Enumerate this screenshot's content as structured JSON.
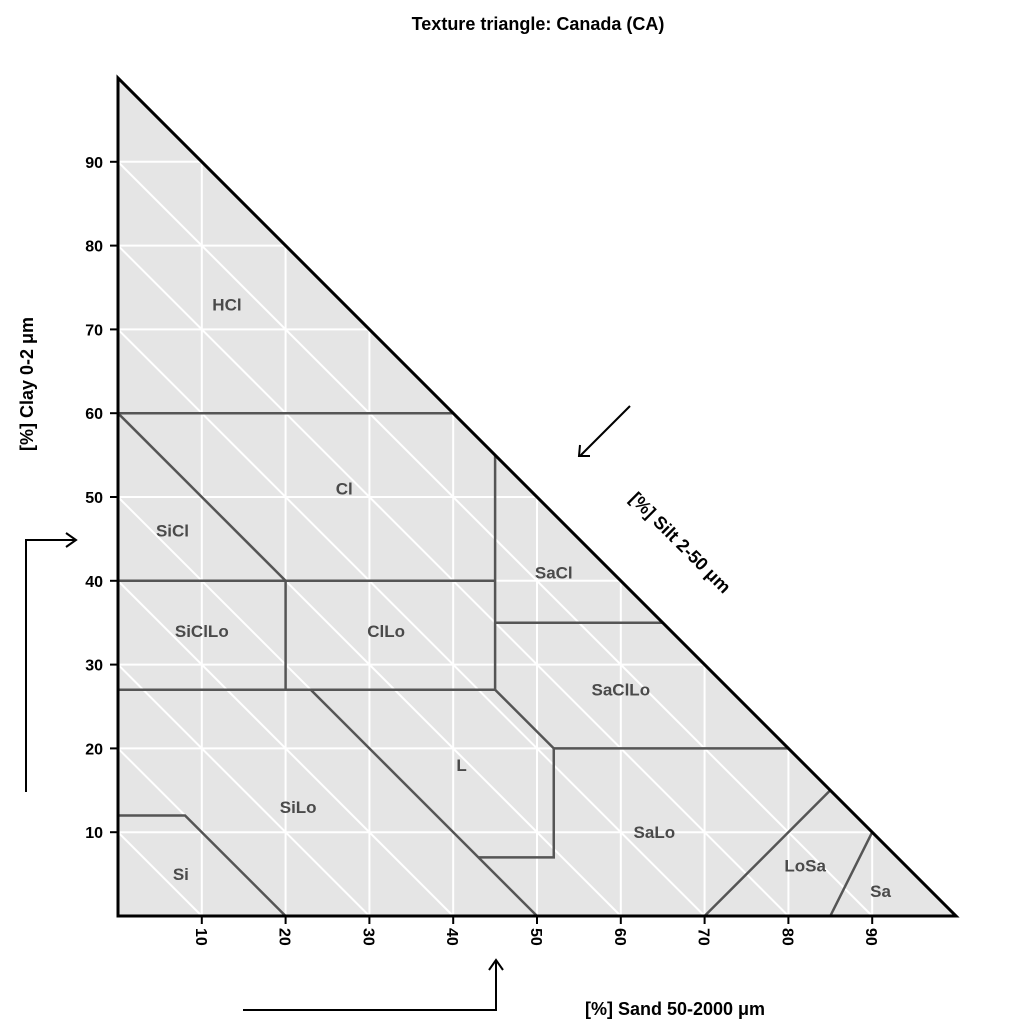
{
  "chart_data": {
    "type": "ternary",
    "title": "Texture triangle: Canada (CA)",
    "axes": {
      "clay": {
        "label": "[%] Clay 0-2 μm",
        "ticks": [
          "10",
          "20",
          "30",
          "40",
          "50",
          "60",
          "70",
          "80",
          "90"
        ]
      },
      "silt": {
        "label": "[%] Silt 2-50 μm",
        "ticks": []
      },
      "sand": {
        "label": "[%] Sand 50-2000 μm",
        "ticks": [
          "10",
          "20",
          "30",
          "40",
          "50",
          "60",
          "70",
          "80",
          "90"
        ]
      }
    },
    "grid": true,
    "classes": [
      {
        "label": "HCl",
        "at": [
          13,
          73
        ],
        "polygon": [
          [
            0,
            60
          ],
          [
            40,
            60
          ],
          [
            0,
            100
          ]
        ]
      },
      {
        "label": "Cl",
        "at": [
          27,
          51
        ],
        "polygon": [
          [
            0,
            60
          ],
          [
            20,
            40
          ],
          [
            45,
            40
          ],
          [
            45,
            55
          ],
          [
            40,
            60
          ]
        ]
      },
      {
        "label": "SiCl",
        "at": [
          6.5,
          46
        ],
        "polygon": [
          [
            0,
            40
          ],
          [
            20,
            40
          ],
          [
            0,
            60
          ]
        ]
      },
      {
        "label": "SaCl",
        "at": [
          52,
          41
        ],
        "polygon": [
          [
            45,
            35
          ],
          [
            65,
            35
          ],
          [
            45,
            55
          ]
        ]
      },
      {
        "label": "SiClLo",
        "at": [
          10,
          34
        ],
        "polygon": [
          [
            0,
            27
          ],
          [
            20,
            27
          ],
          [
            20,
            40
          ],
          [
            0,
            40
          ]
        ]
      },
      {
        "label": "ClLo",
        "at": [
          32,
          34
        ],
        "polygon": [
          [
            20,
            27
          ],
          [
            45,
            27
          ],
          [
            45,
            40
          ],
          [
            20,
            40
          ]
        ]
      },
      {
        "label": "SaClLo",
        "at": [
          60,
          27
        ],
        "polygon": [
          [
            45,
            27
          ],
          [
            52,
            20
          ],
          [
            80,
            20
          ],
          [
            65,
            35
          ],
          [
            45,
            35
          ]
        ]
      },
      {
        "label": "L",
        "at": [
          41,
          18
        ],
        "polygon": [
          [
            23,
            27
          ],
          [
            45,
            27
          ],
          [
            52,
            20
          ],
          [
            52,
            7
          ],
          [
            43,
            7
          ]
        ]
      },
      {
        "label": "SiLo",
        "at": [
          21.5,
          13
        ],
        "polygon": [
          [
            0,
            27
          ],
          [
            23,
            27
          ],
          [
            50,
            0
          ],
          [
            20,
            0
          ],
          [
            8,
            12
          ],
          [
            0,
            12
          ]
        ]
      },
      {
        "label": "Si",
        "at": [
          7.5,
          5
        ],
        "polygon": [
          [
            0,
            0
          ],
          [
            20,
            0
          ],
          [
            8,
            12
          ],
          [
            0,
            12
          ]
        ]
      },
      {
        "label": "SaLo",
        "at": [
          64,
          10
        ],
        "polygon": [
          [
            52,
            20
          ],
          [
            80,
            20
          ],
          [
            85,
            15
          ],
          [
            70,
            0
          ],
          [
            50,
            0
          ],
          [
            43,
            7
          ],
          [
            52,
            7
          ]
        ]
      },
      {
        "label": "LoSa",
        "at": [
          82,
          6
        ],
        "polygon": [
          [
            70,
            0
          ],
          [
            85,
            0
          ],
          [
            90,
            10
          ],
          [
            85,
            15
          ]
        ]
      },
      {
        "label": "Sa",
        "at": [
          91,
          3
        ],
        "polygon": [
          [
            85,
            0
          ],
          [
            100,
            0
          ],
          [
            90,
            10
          ]
        ]
      }
    ],
    "boundaries": [
      [
        [
          0,
          60
        ],
        [
          40,
          60
        ]
      ],
      [
        [
          0,
          60
        ],
        [
          20,
          40
        ]
      ],
      [
        [
          0,
          40
        ],
        [
          45,
          40
        ]
      ],
      [
        [
          20,
          40
        ],
        [
          20,
          27
        ]
      ],
      [
        [
          0,
          27
        ],
        [
          45,
          27
        ]
      ],
      [
        [
          45,
          55
        ],
        [
          45,
          27
        ]
      ],
      [
        [
          45,
          35
        ],
        [
          65,
          35
        ]
      ],
      [
        [
          45,
          27
        ],
        [
          52,
          20
        ]
      ],
      [
        [
          52,
          20
        ],
        [
          80,
          20
        ]
      ],
      [
        [
          52,
          20
        ],
        [
          52,
          7
        ],
        [
          43,
          7
        ]
      ],
      [
        [
          23,
          27
        ],
        [
          50,
          0
        ]
      ],
      [
        [
          0,
          12
        ],
        [
          8,
          12
        ],
        [
          20,
          0
        ]
      ],
      [
        [
          70,
          0
        ],
        [
          85,
          15
        ]
      ],
      [
        [
          85,
          0
        ],
        [
          90,
          10
        ]
      ]
    ]
  }
}
